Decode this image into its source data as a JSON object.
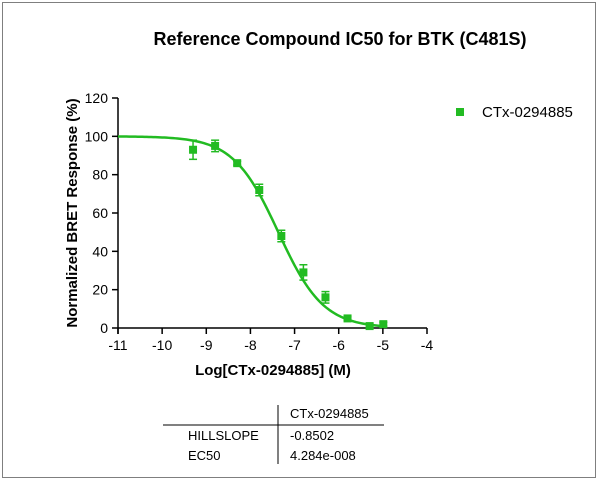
{
  "chart_data": {
    "type": "scatter",
    "title": "Reference Compound IC50 for BTK (C481S)",
    "xlabel": "Log[CTx-0294885] (M)",
    "ylabel": "Normalized BRET Response (%)",
    "xlim": [
      -11,
      -4
    ],
    "ylim": [
      0,
      120
    ],
    "xticks": [
      "-11",
      "-10",
      "-9",
      "-8",
      "-7",
      "-6",
      "-5",
      "-4"
    ],
    "yticks": [
      "0",
      "20",
      "40",
      "60",
      "80",
      "100",
      "120"
    ],
    "grid": false,
    "legend_position": "top-right",
    "series": [
      {
        "name": "CTx-0294885",
        "color": "#22bb22",
        "marker": "square",
        "x": [
          -9.3,
          -8.8,
          -8.3,
          -7.8,
          -7.3,
          -6.8,
          -6.3,
          -5.8,
          -5.3,
          -4.99
        ],
        "y": [
          93,
          95,
          86,
          72,
          48,
          29,
          16,
          5,
          1,
          2
        ],
        "error": [
          5,
          3,
          1,
          3,
          3,
          4,
          3,
          1,
          1,
          1
        ],
        "fit": {
          "model": "sigmoidal dose-response (variable slope)",
          "top": 100,
          "bottom": 0,
          "logEC50": -7.368,
          "hillslope": -0.8502,
          "x_range": [
            -11,
            -5
          ]
        }
      }
    ],
    "results_table": {
      "column_header": "CTx-0294885",
      "rows": [
        {
          "label": "HILLSLOPE",
          "value": "-0.8502"
        },
        {
          "label": "EC50",
          "value": "4.284e-008"
        }
      ]
    }
  }
}
